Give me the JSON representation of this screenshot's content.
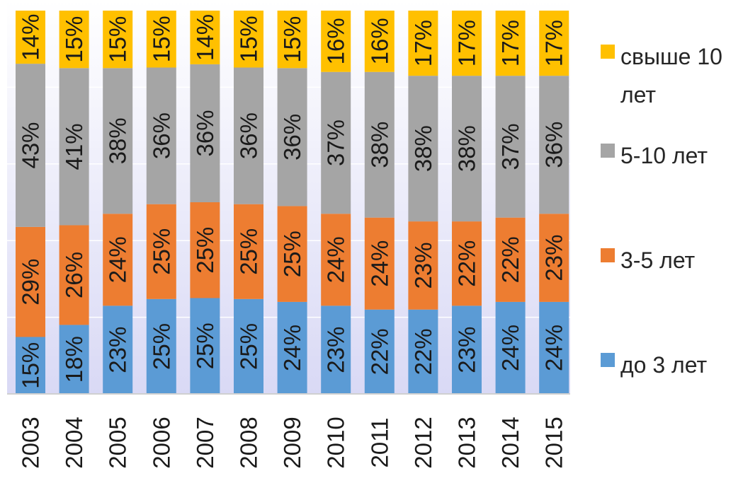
{
  "chart_data": {
    "type": "bar",
    "stacked": true,
    "normalized": true,
    "categories": [
      "2003",
      "2004",
      "2005",
      "2006",
      "2007",
      "2008",
      "2009",
      "2010",
      "2011",
      "2012",
      "2013",
      "2014",
      "2015"
    ],
    "series": [
      {
        "name": "до 3 лет",
        "color": "#5b9bd5",
        "values": [
          15,
          18,
          23,
          25,
          25,
          25,
          24,
          23,
          22,
          22,
          23,
          24,
          24
        ]
      },
      {
        "name": "3-5 лет",
        "color": "#ed7d31",
        "values": [
          29,
          26,
          24,
          25,
          25,
          25,
          25,
          24,
          24,
          23,
          22,
          22,
          23
        ]
      },
      {
        "name": "5-10 лет",
        "color": "#a5a5a5",
        "values": [
          43,
          41,
          38,
          36,
          36,
          36,
          36,
          37,
          38,
          38,
          38,
          37,
          36
        ]
      },
      {
        "name": "свыше 10 лет",
        "color": "#ffc000",
        "values": [
          14,
          15,
          15,
          15,
          14,
          15,
          15,
          16,
          16,
          17,
          17,
          17,
          17
        ]
      }
    ],
    "data_labels": true,
    "label_suffix": "%",
    "ylim": [
      0,
      100
    ],
    "grid": true,
    "legend_position": "right",
    "title": "",
    "xlabel": "",
    "ylabel": ""
  }
}
